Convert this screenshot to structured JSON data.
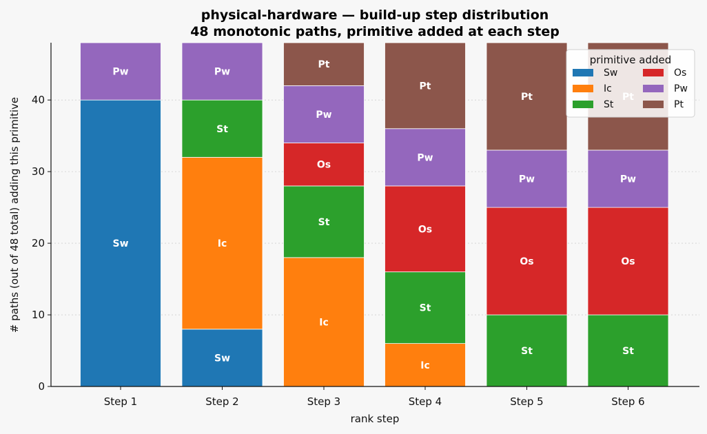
{
  "chart_data": {
    "type": "bar",
    "stacked": true,
    "title": "physical-hardware — build-up step distribution",
    "subtitle": "48 monotonic paths, primitive added at each step",
    "xlabel": "rank step",
    "ylabel": "# paths (out of 48 total) adding this primitive",
    "categories": [
      "Step 1",
      "Step 2",
      "Step 3",
      "Step 4",
      "Step 5",
      "Step 6"
    ],
    "ylim": [
      0,
      48
    ],
    "yticks": [
      0,
      10,
      20,
      30,
      40
    ],
    "grid": true,
    "legend": {
      "title": "primitive added",
      "placement": "top-right",
      "columns": 2,
      "entries": [
        "Sw",
        "Ic",
        "St",
        "Os",
        "Pw",
        "Pt"
      ]
    },
    "series": [
      {
        "name": "Sw",
        "color": "#1f77b4",
        "values": [
          40,
          8,
          0,
          0,
          0,
          0
        ]
      },
      {
        "name": "Ic",
        "color": "#ff7f0e",
        "values": [
          0,
          24,
          18,
          6,
          0,
          0
        ]
      },
      {
        "name": "St",
        "color": "#2ca02c",
        "values": [
          0,
          8,
          10,
          10,
          10,
          10
        ]
      },
      {
        "name": "Os",
        "color": "#d62728",
        "values": [
          0,
          0,
          6,
          12,
          15,
          15
        ]
      },
      {
        "name": "Pw",
        "color": "#9467bd",
        "values": [
          8,
          8,
          8,
          8,
          8,
          8
        ]
      },
      {
        "name": "Pt",
        "color": "#8c564b",
        "values": [
          0,
          0,
          6,
          12,
          15,
          15
        ]
      }
    ]
  }
}
